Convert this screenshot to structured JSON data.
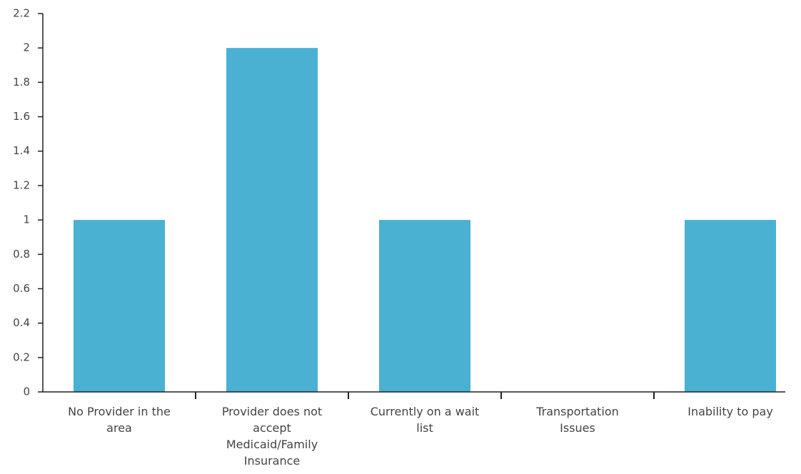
{
  "chart_data": {
    "type": "bar",
    "categories": [
      "No Provider in the area",
      "Provider does not accept Medicaid/Family Insurance",
      "Currently on a wait list",
      "Transportation Issues",
      "Inability to pay"
    ],
    "values": [
      1,
      2,
      1,
      0,
      1
    ],
    "color": "#4ab1d3",
    "ylim": [
      0,
      2.2
    ],
    "yticks": [
      0,
      0.2,
      0.4,
      0.6,
      0.8,
      1,
      1.2,
      1.4,
      1.6,
      1.8,
      2,
      2.2
    ],
    "grid": false
  }
}
